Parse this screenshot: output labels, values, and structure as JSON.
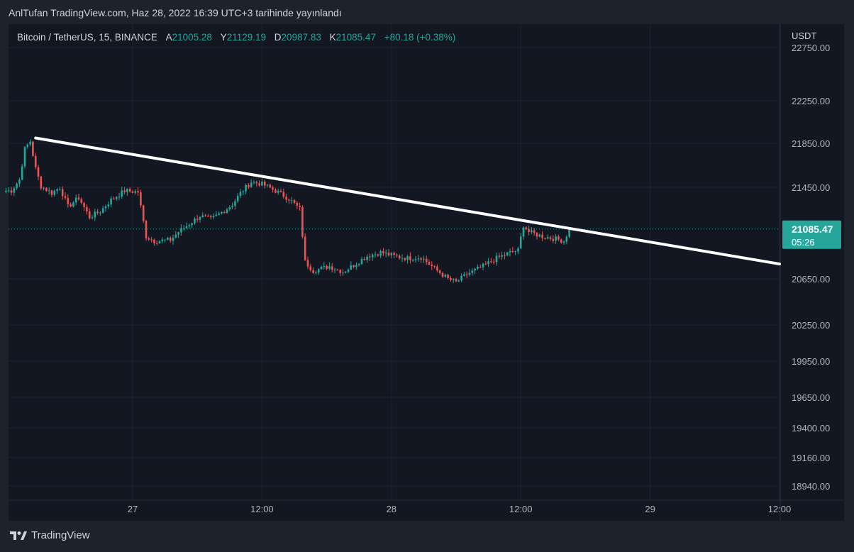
{
  "header": {
    "publish_text": "AnlTufan TradingView.com, Haz 28, 2022 16:39 UTC+3 tarihinde yayınlandı"
  },
  "legend": {
    "symbol": "Bitcoin / TetherUS, 15, BINANCE",
    "open_key": "A",
    "open": "21005.28",
    "high_key": "Y",
    "high": "21129.19",
    "low_key": "D",
    "low": "20987.83",
    "close_key": "K",
    "close": "21085.47",
    "change": "+80.18 (+0.38%)"
  },
  "footer": {
    "brand": "TradingView"
  },
  "colors": {
    "background": "#131722",
    "up": "#26a69a",
    "down": "#ef5350",
    "trendline": "#ffffff",
    "price_tag": "#26a69a"
  },
  "chart_data": {
    "type": "candlestick",
    "symbol": "BTCUSDT",
    "interval": "15",
    "y_unit": "USDT",
    "price_axis_ticks": [
      {
        "value": 22750,
        "label": "22750.00"
      },
      {
        "value": 22250,
        "label": "22250.00"
      },
      {
        "value": 21850,
        "label": "21850.00"
      },
      {
        "value": 21450,
        "label": "21450.00"
      },
      {
        "value": 20650,
        "label": "20650.00"
      },
      {
        "value": 20250,
        "label": "20250.00"
      },
      {
        "value": 19950,
        "label": "19950.00"
      },
      {
        "value": 19650,
        "label": "19650.00"
      },
      {
        "value": 19400,
        "label": "19400.00"
      },
      {
        "value": 19160,
        "label": "19160.00"
      },
      {
        "value": 18940,
        "label": "18940.00"
      }
    ],
    "time_axis_ticks": [
      {
        "t": 0,
        "label": "27"
      },
      {
        "t": 48,
        "label": "12:00"
      },
      {
        "t": 96,
        "label": "28"
      },
      {
        "t": 144,
        "label": "12:00"
      },
      {
        "t": 192,
        "label": "29"
      },
      {
        "t": 240,
        "label": "12:00"
      }
    ],
    "last_price": {
      "value": 21085.47,
      "label": "21085.47",
      "countdown": "05:26"
    },
    "trendline": {
      "from": {
        "t": -36,
        "price": 21900
      },
      "to": {
        "t": 240,
        "price": 20780
      }
    },
    "anchors": [
      {
        "t": -47,
        "price": 21420
      },
      {
        "t": -45,
        "price": 21420
      },
      {
        "t": -42,
        "price": 21520
      },
      {
        "t": -40,
        "price": 21800
      },
      {
        "t": -38,
        "price": 21870
      },
      {
        "t": -36,
        "price": 21620
      },
      {
        "t": -34,
        "price": 21460
      },
      {
        "t": -30,
        "price": 21400
      },
      {
        "t": -27,
        "price": 21450
      },
      {
        "t": -24,
        "price": 21280
      },
      {
        "t": -20,
        "price": 21360
      },
      {
        "t": -16,
        "price": 21190
      },
      {
        "t": -12,
        "price": 21240
      },
      {
        "t": -8,
        "price": 21340
      },
      {
        "t": -3,
        "price": 21420
      },
      {
        "t": 2,
        "price": 21410
      },
      {
        "t": 5,
        "price": 21020
      },
      {
        "t": 8,
        "price": 20980
      },
      {
        "t": 14,
        "price": 20990
      },
      {
        "t": 17,
        "price": 21060
      },
      {
        "t": 21,
        "price": 21130
      },
      {
        "t": 25,
        "price": 21200
      },
      {
        "t": 29,
        "price": 21170
      },
      {
        "t": 33,
        "price": 21230
      },
      {
        "t": 37,
        "price": 21300
      },
      {
        "t": 40,
        "price": 21400
      },
      {
        "t": 44,
        "price": 21500
      },
      {
        "t": 48,
        "price": 21480
      },
      {
        "t": 53,
        "price": 21420
      },
      {
        "t": 58,
        "price": 21350
      },
      {
        "t": 62,
        "price": 21260
      },
      {
        "t": 64,
        "price": 20800
      },
      {
        "t": 67,
        "price": 20720
      },
      {
        "t": 73,
        "price": 20760
      },
      {
        "t": 78,
        "price": 20710
      },
      {
        "t": 82,
        "price": 20770
      },
      {
        "t": 87,
        "price": 20850
      },
      {
        "t": 92,
        "price": 20880
      },
      {
        "t": 97,
        "price": 20850
      },
      {
        "t": 102,
        "price": 20830
      },
      {
        "t": 107,
        "price": 20840
      },
      {
        "t": 112,
        "price": 20740
      },
      {
        "t": 117,
        "price": 20650
      },
      {
        "t": 120,
        "price": 20620
      },
      {
        "t": 124,
        "price": 20690
      },
      {
        "t": 130,
        "price": 20760
      },
      {
        "t": 135,
        "price": 20830
      },
      {
        "t": 140,
        "price": 20880
      },
      {
        "t": 143,
        "price": 20900
      },
      {
        "t": 145,
        "price": 21120
      },
      {
        "t": 147,
        "price": 21060
      },
      {
        "t": 152,
        "price": 21020
      },
      {
        "t": 157,
        "price": 21000
      },
      {
        "t": 160,
        "price": 20980
      },
      {
        "t": 162,
        "price": 21085
      }
    ]
  }
}
